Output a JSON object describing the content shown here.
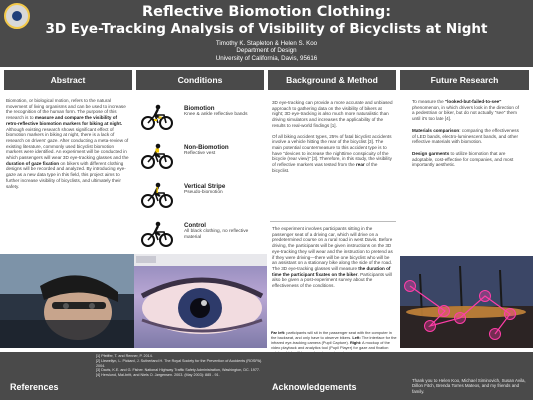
{
  "header": {
    "title_line1": "Reflective Biomotion Clothing:",
    "title_line2": "3D Eye-Tracking Analysis of Visibility of Bicyclists at Night",
    "authors": "Timothy K. Stapleton & Helen S. Koo",
    "department": "Department of Design",
    "university": "University of California, Davis, 95616"
  },
  "sections": {
    "abstract": "Abstract",
    "conditions": "Conditions",
    "background_method": "Background & Method",
    "future_research": "Future Research",
    "references": "References",
    "acknowledgements": "Acknowledgements"
  },
  "abstract": {
    "p1_a": "Biomotion, or biological motion, refers to the natural movement of living organisms and can be used to increase the recognition of the human form. The purpose of this research is to ",
    "p1_b": "measure and compare the visibility of retro-reflective biomotion markers for biking at night.",
    "p1_c": " Although existing research shows significant effect of biomotion markers in biking at night, there is a lack of research on drivers' gaze. After conducting a meta-review of existing literature, commonly used bicyclist biomotion markers were identified. An experiment will be conducted in which passengers will wear 3D eye-tracking glasses and the ",
    "p1_d": "duration of gaze fixation",
    "p1_e": " on bikers with different clothing designs will be recorded and analyzed. By introducing eye-gaze as a new data type in this field, this project aims to further increase visibility of bicyclists, and ultimately their safety."
  },
  "conditions": [
    {
      "title": "Biomotion",
      "desc": "Knee & ankle reflective bands"
    },
    {
      "title": "Non-Biomotion",
      "desc": "Reflective vest"
    },
    {
      "title": "Vertical Stripe",
      "desc": "Pseudo-biomotion"
    },
    {
      "title": "Control",
      "desc": "All black clothing, no reflective material"
    }
  ],
  "background": {
    "p1": "3D eye-tracking can provide a more accurate and unbiased approach to gathering data on the visibility of bikers at night; 3D eye-tracking is also much more naturalistic than driving simulators and increases the applicability of the results to real-world findings [1].",
    "p2_a": "Of all biking accident types, 25% of fatal bicyclist accidents involve a vehicle hitting the rear of the bicyclist [3]. The main potential countermeasure to this accident type is to have \"devices to increase the nighttime conspicuity of the bicycle (rear view)\" [3]. Therefore, in this study, the visibility of reflective markers was tested from the ",
    "p2_b": "rear",
    "p2_c": " of the bicyclist.",
    "p3_a": "The experiment involves participants sitting in the passenger seat of a driving car, which will drive on a predetermined course on a rural road in west Davis. Before driving, the participants will be given instructions on the 3D eye-tracking they will wear and the instruction to pretend as if they were driving—there will be one bicyclist who will be an assistant on a stationary bike along the side of the road. The 3D eye-tracking glasses will measure ",
    "p3_b": "the duration of time the participant fixates on the biker",
    "p3_c": ". Participants will also be given a post-experiment survey about the effectiveness of the conditions."
  },
  "caption": {
    "far_left_label": "Far left:",
    "far_left": " participants will sit in the passenger seat with the computer in the backseat, and only have to observe bikers. ",
    "left_label": "Left:",
    "left": " The interface for the infrared eye-tracking camera (Pupil Capture). ",
    "right_label": "Right:",
    "right": " A mockup of the video playback and analytics tool (Pupil Player) for gaze and fixation points, which will be used post-experiment"
  },
  "future": {
    "p1_a": "To measure the ",
    "p1_b": "\"looked-but-failed-to-see\"",
    "p1_c": " phenomenon, in which drivers look in the direction of a pedestrian or biker, but do not actually \"see\" them until it's too late [4].",
    "p2_a": "Materials comparison",
    "p2_b": ": comparing the effectiveness of LED bands, electro-luminescent bands, and other reflective materials with biomotion.",
    "p3_a": "Design garments",
    "p3_b": " to utilize biomotion that are adoptable, cost-effective for companies, and most importantly aesthetic."
  },
  "references": [
    "[1] Pfeiffer, T. and Renner, P. 2014.",
    "[2] Llewellyn, L. Pickard, J. Sutherland H. The Royal Society for the Prevention of Accidents (ROSPA). 2004.",
    "[3] Davis, K.E. and G. Fisher. National Highway Traffic Safety Administration, Washington, DC. 1977.",
    "[4] Herslund, Mai-britt, and Niels O. Jørgensen. 2003. (May 2003): 885 - 91."
  ],
  "acknowledgements": "Thank you to Helen Koo, Michael Siminovich, Susan Avila, Dillon Fitch, Brenda Torres Mateos, and my friends and family.",
  "colors": {
    "header_bg": "#4a4a4a",
    "accent_pink": "#ff3da8"
  }
}
